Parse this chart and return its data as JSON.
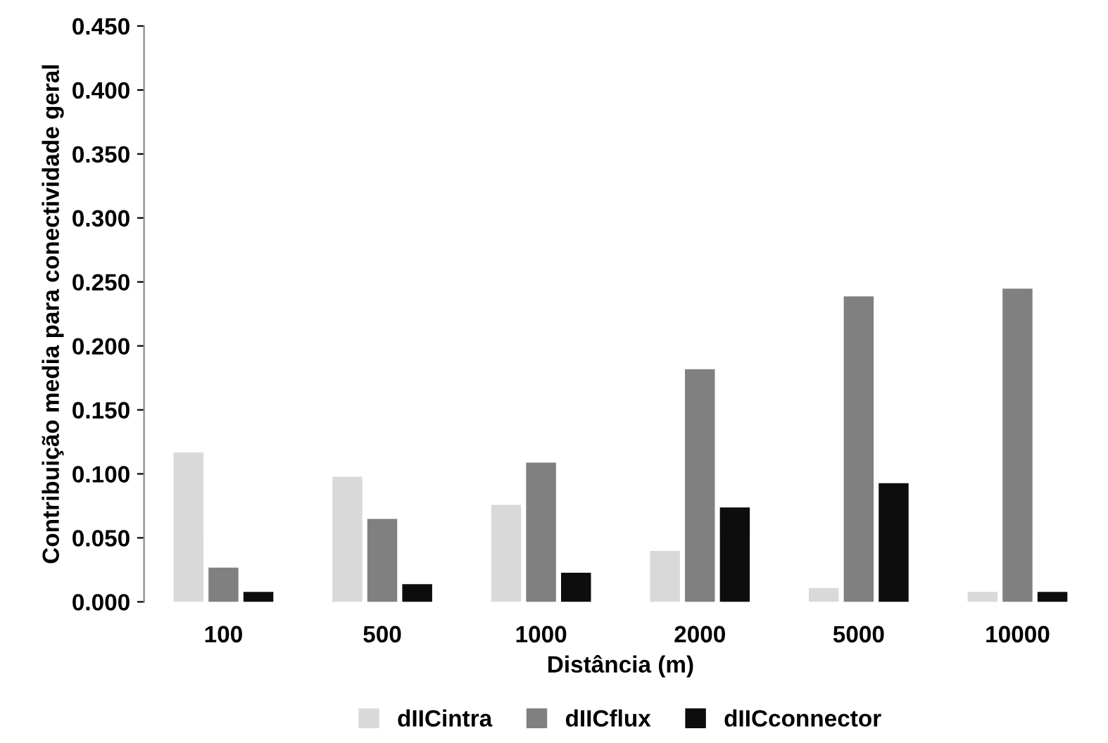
{
  "chart_data": {
    "type": "bar",
    "xlabel": "Distância (m)",
    "ylabel": "Contribuição media para conectividade geral",
    "categories": [
      "100",
      "500",
      "1000",
      "2000",
      "5000",
      "10000"
    ],
    "series": [
      {
        "name": "dIICintra",
        "color": "#d9d9d9",
        "values": [
          0.116,
          0.097,
          0.075,
          0.039,
          0.01,
          0.007
        ]
      },
      {
        "name": "dIICflux",
        "color": "#808080",
        "values": [
          0.026,
          0.064,
          0.108,
          0.181,
          0.238,
          0.244
        ]
      },
      {
        "name": "dIICconnector",
        "color": "#0d0d0d",
        "values": [
          0.007,
          0.013,
          0.022,
          0.073,
          0.092,
          0.007
        ]
      }
    ],
    "ylim": [
      0,
      0.45
    ],
    "yticks": [
      {
        "value": 0,
        "label": "0.000"
      },
      {
        "value": 0.05,
        "label": "0.050"
      },
      {
        "value": 0.1,
        "label": "0.100"
      },
      {
        "value": 0.15,
        "label": "0.150"
      },
      {
        "value": 0.2,
        "label": "0.200"
      },
      {
        "value": 0.25,
        "label": "0.250"
      },
      {
        "value": 0.3,
        "label": "0.300"
      },
      {
        "value": 0.35,
        "label": "0.350"
      },
      {
        "value": 0.4,
        "label": "0.400"
      },
      {
        "value": 0.45,
        "label": "0.450"
      }
    ],
    "grid": false,
    "legend": "bottom"
  }
}
